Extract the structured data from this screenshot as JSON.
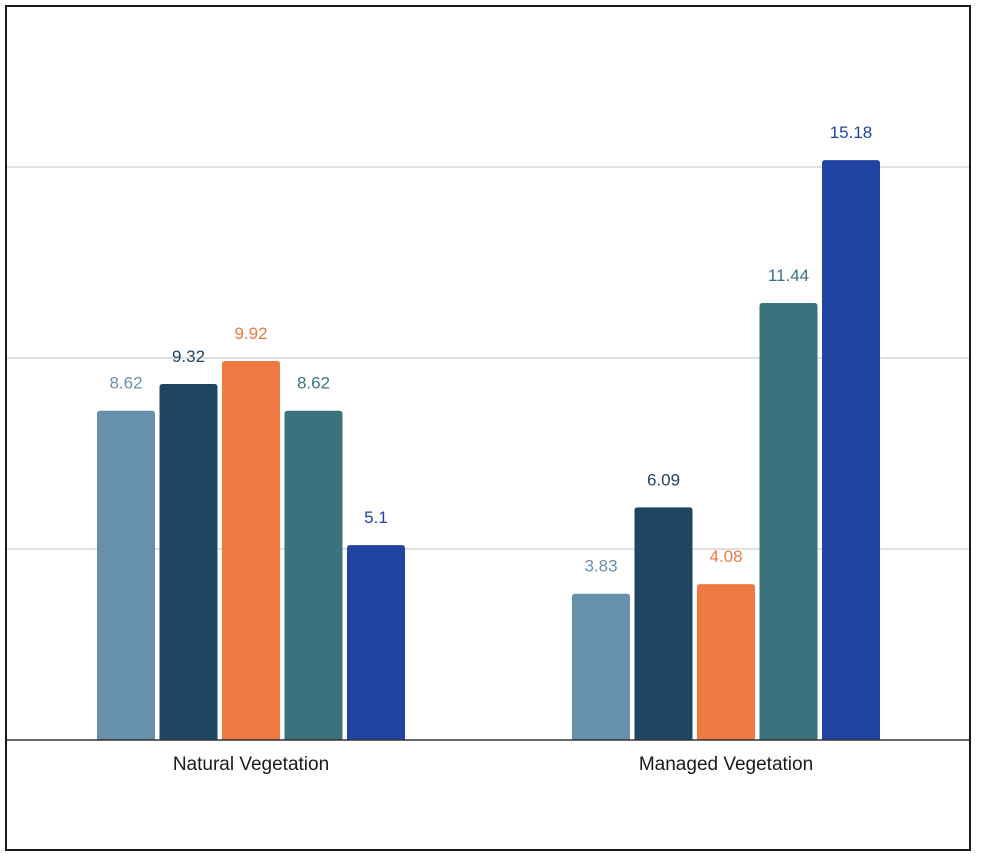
{
  "chart_data": {
    "type": "bar",
    "title": "",
    "xlabel": "",
    "ylabel": "",
    "categories": [
      "Natural Vegetation",
      "Managed Vegetation"
    ],
    "ylim": [
      0,
      16
    ],
    "y_gridlines": [
      5,
      10,
      15
    ],
    "y_tick_labels_shown": false,
    "grid": true,
    "legend": "none",
    "series": [
      {
        "values": [
          8.62,
          3.83
        ],
        "labels": [
          "8.62",
          "3.83"
        ],
        "color": "#6690ab"
      },
      {
        "values": [
          9.32,
          6.09
        ],
        "labels": [
          "9.32",
          "6.09"
        ],
        "color": "#1f4560"
      },
      {
        "values": [
          9.92,
          4.08
        ],
        "labels": [
          "9.92",
          "4.08"
        ],
        "color": "#ee7942"
      },
      {
        "values": [
          8.62,
          11.44
        ],
        "labels": [
          "8.62",
          "11.44"
        ],
        "color": "#3a737e"
      },
      {
        "values": [
          5.1,
          15.18
        ],
        "labels": [
          "5.1",
          "15.18"
        ],
        "color": "#2144a3"
      }
    ]
  }
}
